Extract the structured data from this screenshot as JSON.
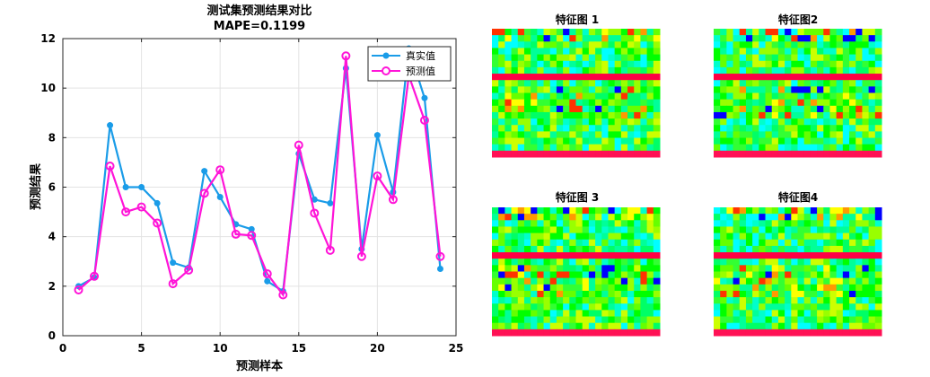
{
  "chart_data": [
    {
      "type": "line",
      "title": "测试集预测结果对比",
      "subtitle": "MAPE=0.1199",
      "xlabel": "预测样本",
      "ylabel": "预测结果",
      "xlim": [
        0,
        25
      ],
      "ylim": [
        0,
        12
      ],
      "xticks": [
        0,
        5,
        10,
        15,
        20,
        25
      ],
      "yticks": [
        0,
        2,
        4,
        6,
        8,
        10,
        12
      ],
      "grid": true,
      "legend_position": "top-right",
      "x": [
        1,
        2,
        3,
        4,
        5,
        6,
        7,
        8,
        9,
        10,
        11,
        12,
        13,
        14,
        15,
        16,
        17,
        18,
        19,
        20,
        21,
        22,
        23,
        24
      ],
      "series": [
        {
          "name": "真实值",
          "color": "#1a9ce8",
          "marker": "filled-circle",
          "values": [
            2.0,
            2.35,
            8.5,
            6.0,
            6.0,
            5.35,
            2.95,
            2.75,
            6.65,
            5.6,
            4.5,
            4.3,
            2.2,
            1.8,
            7.35,
            5.5,
            5.35,
            10.8,
            3.5,
            8.1,
            5.8,
            11.6,
            9.6,
            2.7
          ]
        },
        {
          "name": "预测值",
          "color": "#ff14d8",
          "marker": "open-circle",
          "values": [
            1.85,
            2.4,
            6.85,
            5.0,
            5.2,
            4.55,
            2.1,
            2.65,
            5.75,
            6.7,
            4.1,
            4.05,
            2.5,
            1.65,
            7.7,
            4.95,
            3.45,
            11.3,
            3.2,
            6.45,
            5.5,
            10.5,
            8.7,
            3.2
          ]
        }
      ]
    },
    {
      "type": "heatmap",
      "panels": [
        {
          "title": "特征图 1"
        },
        {
          "title": "特征图2"
        },
        {
          "title": "特征图 3"
        },
        {
          "title": "特征图4"
        }
      ]
    }
  ]
}
